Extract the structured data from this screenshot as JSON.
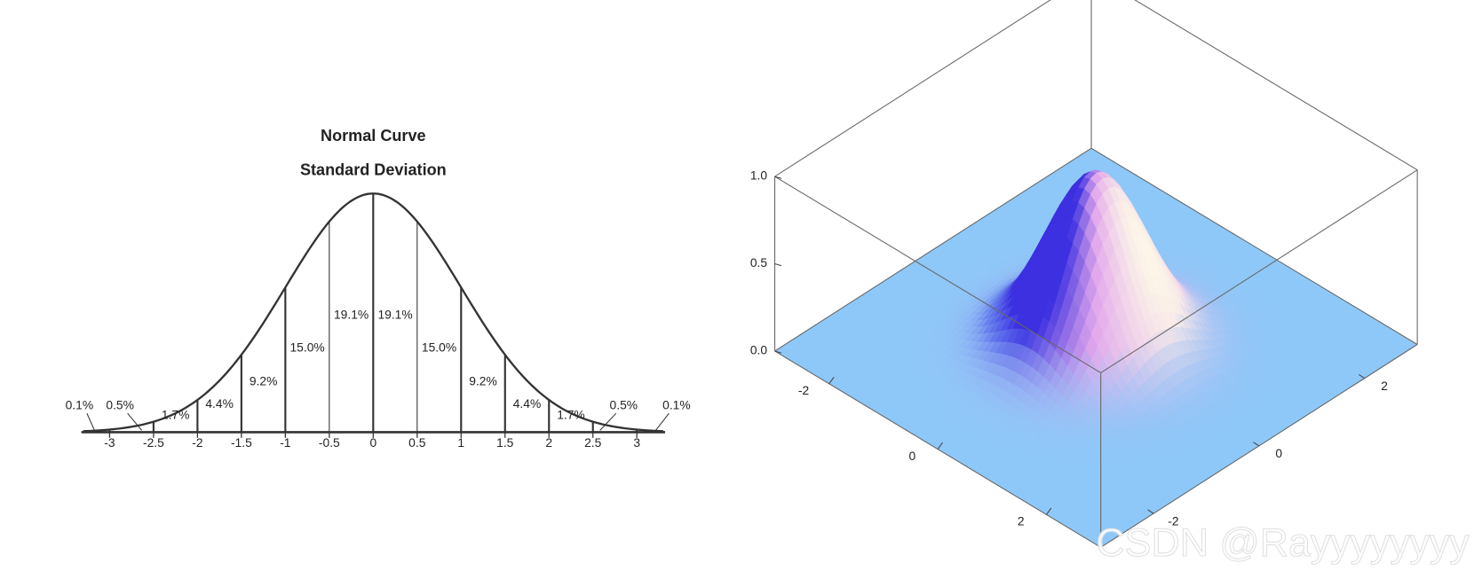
{
  "chart_data": [
    {
      "type": "normal-curve",
      "title": "Normal Curve",
      "subtitle": "Standard Deviation",
      "xlim": [
        -3.3,
        3.3
      ],
      "xticks": [
        -3,
        -2.5,
        -2,
        -1.5,
        -1,
        -0.5,
        0,
        0.5,
        1,
        1.5,
        2,
        2.5,
        3
      ],
      "values": [
        0.1,
        0.5,
        1.7,
        4.4,
        9.2,
        15.0,
        19.1,
        19.1,
        15.0,
        9.2,
        4.4,
        1.7,
        0.5,
        0.1
      ],
      "value_labels": [
        "0.1%",
        "0.5%",
        "1.7%",
        "4.4%",
        "9.2%",
        "15.0%",
        "19.1%",
        "19.1%",
        "15.0%",
        "9.2%",
        "4.4%",
        "1.7%",
        "0.5%",
        "0.1%"
      ]
    },
    {
      "type": "surface",
      "xlim": [
        -3,
        3
      ],
      "ylim": [
        -3,
        3
      ],
      "zlim": [
        0,
        1
      ],
      "xticks": [
        -2,
        0,
        2
      ],
      "yticks": [
        -2,
        0,
        2
      ],
      "zticks": [
        {
          "value": 0,
          "label": "0.0"
        },
        {
          "value": 0.5,
          "label": "0.5"
        },
        {
          "value": 1,
          "label": "1.0"
        }
      ]
    }
  ],
  "watermark": "CSDN @Rayyyyyyyy"
}
